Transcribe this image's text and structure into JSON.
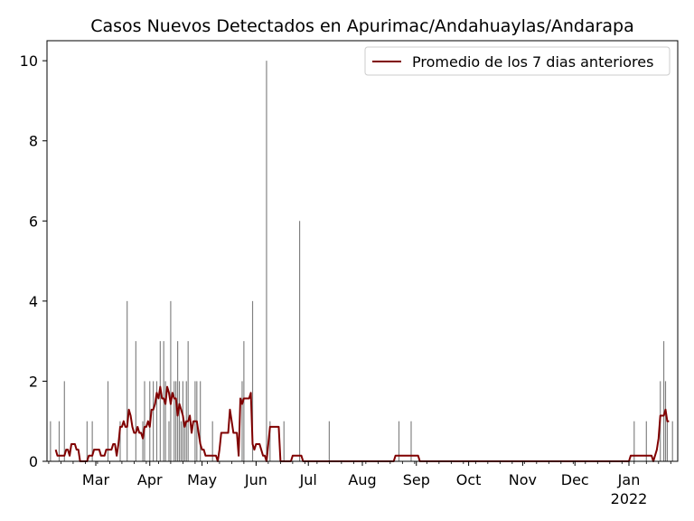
{
  "chart_data": {
    "type": "bar",
    "title": "Casos Nuevos Detectados en Apurimac/Andahuaylas/Andarapa",
    "xlabel": "",
    "ylabel": "",
    "x_range": [
      "2021-02-01",
      "2022-01-29"
    ],
    "ylim": [
      0,
      10.5
    ],
    "y_ticks": [
      0,
      2,
      4,
      6,
      8,
      10
    ],
    "x_ticks": [
      {
        "date": "2021-03-01",
        "label": "Mar",
        "sublabel": ""
      },
      {
        "date": "2021-04-01",
        "label": "Apr",
        "sublabel": ""
      },
      {
        "date": "2021-05-01",
        "label": "May",
        "sublabel": ""
      },
      {
        "date": "2021-06-01",
        "label": "Jun",
        "sublabel": ""
      },
      {
        "date": "2021-07-01",
        "label": "Jul",
        "sublabel": ""
      },
      {
        "date": "2021-08-01",
        "label": "Aug",
        "sublabel": ""
      },
      {
        "date": "2021-09-01",
        "label": "Sep",
        "sublabel": ""
      },
      {
        "date": "2021-10-01",
        "label": "Oct",
        "sublabel": ""
      },
      {
        "date": "2021-11-01",
        "label": "Nov",
        "sublabel": ""
      },
      {
        "date": "2021-12-01",
        "label": "Dec",
        "sublabel": ""
      },
      {
        "date": "2022-01-01",
        "label": "Jan",
        "sublabel": "2022"
      }
    ],
    "grid": false,
    "legend_position": "top-right",
    "series": [
      {
        "name": "",
        "kind": "bar",
        "color": "#808080",
        "points": [
          [
            "2021-02-03",
            1
          ],
          [
            "2021-02-08",
            1
          ],
          [
            "2021-02-11",
            2
          ],
          [
            "2021-02-24",
            1
          ],
          [
            "2021-02-27",
            1
          ],
          [
            "2021-03-08",
            2
          ],
          [
            "2021-03-15",
            1
          ],
          [
            "2021-03-19",
            4
          ],
          [
            "2021-03-24",
            3
          ],
          [
            "2021-03-28",
            1
          ],
          [
            "2021-03-29",
            2
          ],
          [
            "2021-04-01",
            2
          ],
          [
            "2021-04-03",
            2
          ],
          [
            "2021-04-05",
            2
          ],
          [
            "2021-04-07",
            3
          ],
          [
            "2021-04-09",
            3
          ],
          [
            "2021-04-10",
            2
          ],
          [
            "2021-04-12",
            1
          ],
          [
            "2021-04-13",
            4
          ],
          [
            "2021-04-15",
            2
          ],
          [
            "2021-04-16",
            2
          ],
          [
            "2021-04-17",
            3
          ],
          [
            "2021-04-18",
            2
          ],
          [
            "2021-04-19",
            1
          ],
          [
            "2021-04-20",
            2
          ],
          [
            "2021-04-21",
            1
          ],
          [
            "2021-04-22",
            2
          ],
          [
            "2021-04-23",
            3
          ],
          [
            "2021-04-27",
            2
          ],
          [
            "2021-04-28",
            2
          ],
          [
            "2021-04-30",
            2
          ],
          [
            "2021-05-07",
            1
          ],
          [
            "2021-05-24",
            2
          ],
          [
            "2021-05-25",
            3
          ],
          [
            "2021-05-30",
            4
          ],
          [
            "2021-06-07",
            10
          ],
          [
            "2021-06-09",
            1
          ],
          [
            "2021-06-17",
            1
          ],
          [
            "2021-06-26",
            6
          ],
          [
            "2021-07-13",
            1
          ],
          [
            "2021-08-22",
            1
          ],
          [
            "2021-08-29",
            1
          ],
          [
            "2022-01-04",
            1
          ],
          [
            "2022-01-11",
            1
          ],
          [
            "2022-01-19",
            2
          ],
          [
            "2022-01-21",
            3
          ],
          [
            "2022-01-22",
            2
          ],
          [
            "2022-01-23",
            1
          ],
          [
            "2022-01-26",
            1
          ]
        ]
      },
      {
        "name": "Promedio de los 7 dias anteriores",
        "kind": "line",
        "color": "#800000",
        "points": [
          [
            "2021-02-06",
            0.29
          ],
          [
            "2021-02-07",
            0.14
          ],
          [
            "2021-02-10",
            0.14
          ],
          [
            "2021-02-11",
            0.14
          ],
          [
            "2021-02-12",
            0.29
          ],
          [
            "2021-02-13",
            0.29
          ],
          [
            "2021-02-14",
            0.14
          ],
          [
            "2021-02-15",
            0.43
          ],
          [
            "2021-02-16",
            0.43
          ],
          [
            "2021-02-17",
            0.43
          ],
          [
            "2021-02-18",
            0.29
          ],
          [
            "2021-02-19",
            0.29
          ],
          [
            "2021-02-20",
            0
          ],
          [
            "2021-02-24",
            0
          ],
          [
            "2021-02-25",
            0.14
          ],
          [
            "2021-02-27",
            0.14
          ],
          [
            "2021-02-28",
            0.29
          ],
          [
            "2021-03-03",
            0.29
          ],
          [
            "2021-03-04",
            0.14
          ],
          [
            "2021-03-06",
            0.14
          ],
          [
            "2021-03-07",
            0.29
          ],
          [
            "2021-03-10",
            0.29
          ],
          [
            "2021-03-11",
            0.43
          ],
          [
            "2021-03-12",
            0.43
          ],
          [
            "2021-03-13",
            0.14
          ],
          [
            "2021-03-14",
            0.43
          ],
          [
            "2021-03-15",
            0.86
          ],
          [
            "2021-03-16",
            0.86
          ],
          [
            "2021-03-17",
            1.0
          ],
          [
            "2021-03-18",
            0.86
          ],
          [
            "2021-03-19",
            0.86
          ],
          [
            "2021-03-20",
            1.29
          ],
          [
            "2021-03-21",
            1.14
          ],
          [
            "2021-03-22",
            0.86
          ],
          [
            "2021-03-23",
            0.71
          ],
          [
            "2021-03-24",
            0.71
          ],
          [
            "2021-03-25",
            0.86
          ],
          [
            "2021-03-26",
            0.71
          ],
          [
            "2021-03-27",
            0.71
          ],
          [
            "2021-03-28",
            0.57
          ],
          [
            "2021-03-29",
            0.86
          ],
          [
            "2021-03-30",
            0.86
          ],
          [
            "2021-03-31",
            1.0
          ],
          [
            "2021-04-01",
            0.86
          ],
          [
            "2021-04-02",
            1.29
          ],
          [
            "2021-04-03",
            1.29
          ],
          [
            "2021-04-04",
            1.43
          ],
          [
            "2021-04-05",
            1.71
          ],
          [
            "2021-04-06",
            1.57
          ],
          [
            "2021-04-07",
            1.86
          ],
          [
            "2021-04-08",
            1.57
          ],
          [
            "2021-04-09",
            1.57
          ],
          [
            "2021-04-10",
            1.43
          ],
          [
            "2021-04-11",
            1.86
          ],
          [
            "2021-04-12",
            1.71
          ],
          [
            "2021-04-13",
            1.43
          ],
          [
            "2021-04-14",
            1.71
          ],
          [
            "2021-04-15",
            1.57
          ],
          [
            "2021-04-16",
            1.57
          ],
          [
            "2021-04-17",
            1.14
          ],
          [
            "2021-04-18",
            1.43
          ],
          [
            "2021-04-19",
            1.29
          ],
          [
            "2021-04-20",
            1.14
          ],
          [
            "2021-04-21",
            0.86
          ],
          [
            "2021-04-22",
            1.0
          ],
          [
            "2021-04-23",
            1.0
          ],
          [
            "2021-04-24",
            1.14
          ],
          [
            "2021-04-25",
            0.71
          ],
          [
            "2021-04-26",
            1.0
          ],
          [
            "2021-04-27",
            1.0
          ],
          [
            "2021-04-28",
            1.0
          ],
          [
            "2021-04-29",
            0.71
          ],
          [
            "2021-04-30",
            0.43
          ],
          [
            "2021-05-01",
            0.29
          ],
          [
            "2021-05-02",
            0.29
          ],
          [
            "2021-05-03",
            0.14
          ],
          [
            "2021-05-09",
            0.14
          ],
          [
            "2021-05-10",
            0
          ],
          [
            "2021-05-11",
            0.29
          ],
          [
            "2021-05-12",
            0.71
          ],
          [
            "2021-05-16",
            0.71
          ],
          [
            "2021-05-17",
            1.29
          ],
          [
            "2021-05-18",
            1.0
          ],
          [
            "2021-05-19",
            0.71
          ],
          [
            "2021-05-21",
            0.71
          ],
          [
            "2021-05-22",
            0.14
          ],
          [
            "2021-05-23",
            1.57
          ],
          [
            "2021-05-24",
            1.43
          ],
          [
            "2021-05-25",
            1.57
          ],
          [
            "2021-05-28",
            1.57
          ],
          [
            "2021-05-29",
            1.71
          ],
          [
            "2021-05-30",
            0.43
          ],
          [
            "2021-05-31",
            0.29
          ],
          [
            "2021-06-01",
            0.43
          ],
          [
            "2021-06-03",
            0.43
          ],
          [
            "2021-06-05",
            0.14
          ],
          [
            "2021-06-06",
            0.14
          ],
          [
            "2021-06-07",
            0
          ],
          [
            "2021-06-09",
            0.86
          ],
          [
            "2021-06-14",
            0.86
          ],
          [
            "2021-06-15",
            0
          ],
          [
            "2021-06-21",
            0
          ],
          [
            "2021-06-22",
            0.14
          ],
          [
            "2021-06-27",
            0.14
          ],
          [
            "2021-06-28",
            0
          ],
          [
            "2021-08-19",
            0
          ],
          [
            "2021-08-20",
            0.14
          ],
          [
            "2021-09-02",
            0.14
          ],
          [
            "2021-09-03",
            0
          ],
          [
            "2022-01-01",
            0
          ],
          [
            "2022-01-02",
            0.14
          ],
          [
            "2022-01-14",
            0.14
          ],
          [
            "2022-01-15",
            0
          ],
          [
            "2022-01-17",
            0.29
          ],
          [
            "2022-01-18",
            0.57
          ],
          [
            "2022-01-19",
            1.14
          ],
          [
            "2022-01-21",
            1.14
          ],
          [
            "2022-01-22",
            1.29
          ],
          [
            "2022-01-23",
            1.0
          ],
          [
            "2022-01-24",
            1.0
          ]
        ]
      }
    ]
  }
}
